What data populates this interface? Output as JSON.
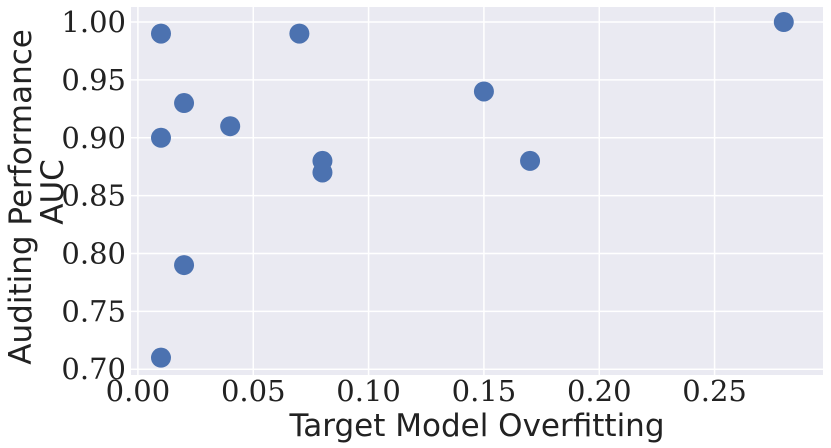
{
  "chart_data": {
    "type": "scatter",
    "xlabel": "Target Model Overfitting",
    "ylabel": [
      "Auditing Performance",
      "AUC"
    ],
    "xlim": [
      -0.003,
      0.297
    ],
    "ylim": [
      0.695,
      1.013
    ],
    "x_ticks": [
      0.0,
      0.05,
      0.1,
      0.15,
      0.2,
      0.25
    ],
    "x_tick_labels": [
      "0.00",
      "0.05",
      "0.10",
      "0.15",
      "0.20",
      "0.25"
    ],
    "y_ticks": [
      0.7,
      0.75,
      0.8,
      0.85,
      0.9,
      0.95,
      1.0
    ],
    "y_tick_labels": [
      "0.70",
      "0.75",
      "0.80",
      "0.85",
      "0.90",
      "0.95",
      "1.00"
    ],
    "grid": true,
    "series": [
      {
        "color": "#4c72b0",
        "points": [
          {
            "x": 0.01,
            "y": 0.99
          },
          {
            "x": 0.07,
            "y": 0.99
          },
          {
            "x": 0.28,
            "y": 1.0
          },
          {
            "x": 0.02,
            "y": 0.93
          },
          {
            "x": 0.15,
            "y": 0.94
          },
          {
            "x": 0.04,
            "y": 0.91
          },
          {
            "x": 0.01,
            "y": 0.9
          },
          {
            "x": 0.08,
            "y": 0.88
          },
          {
            "x": 0.08,
            "y": 0.87
          },
          {
            "x": 0.17,
            "y": 0.88
          },
          {
            "x": 0.02,
            "y": 0.79
          },
          {
            "x": 0.01,
            "y": 0.71
          }
        ]
      }
    ]
  },
  "colors": {
    "plot_background": "#eaeaf2",
    "grid": "#ffffff",
    "marker": "#4c72b0"
  }
}
